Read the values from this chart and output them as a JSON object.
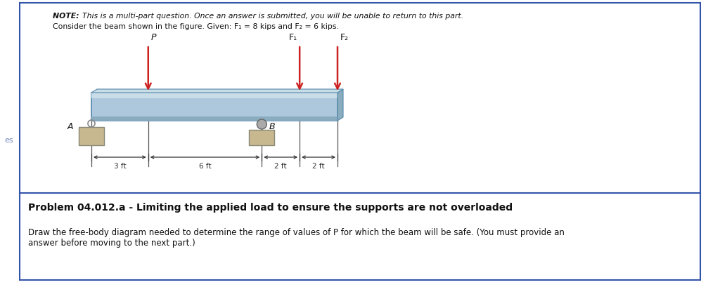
{
  "background_color": "#ffffff",
  "border_color": "#3355aa",
  "fig_width": 10.24,
  "fig_height": 4.09,
  "note_line1": "NOTE: This is a multi-part question. Once an answer is submitted, you will be unable to return to this part.",
  "note_line2": "Consider the beam shown in the figure. Given: F₁ = 8 kips and F₂ = 6 kips.",
  "problem_title": "Problem 04.012.a - Limiting the applied load to ensure the supports are not overloaded",
  "body_line1": "Draw the free-body diagram needed to determine the range of values of P for which the beam will be safe. (You must provide an",
  "body_line2": "answer before moving to the next part.)",
  "beam_color": "#adc8dc",
  "beam_top_color": "#c8dde8",
  "beam_border_color": "#5588aa",
  "support_color": "#c8b890",
  "arrow_color": "#cc2222",
  "dim_color": "#333333",
  "label_A": "A",
  "label_B": "B",
  "label_P": "P",
  "label_F1": "F₁",
  "label_F2": "F₂",
  "dim_3ft": "3 ft",
  "dim_6ft": "6 ft",
  "dim_2ft_1": "2 ft",
  "dim_2ft_2": "2 ft",
  "total_ft": 13.0,
  "A_ft": 0,
  "P_ft": 3,
  "B_ft": 9,
  "F1_ft": 11,
  "F2_ft": 13,
  "es_label": "es"
}
